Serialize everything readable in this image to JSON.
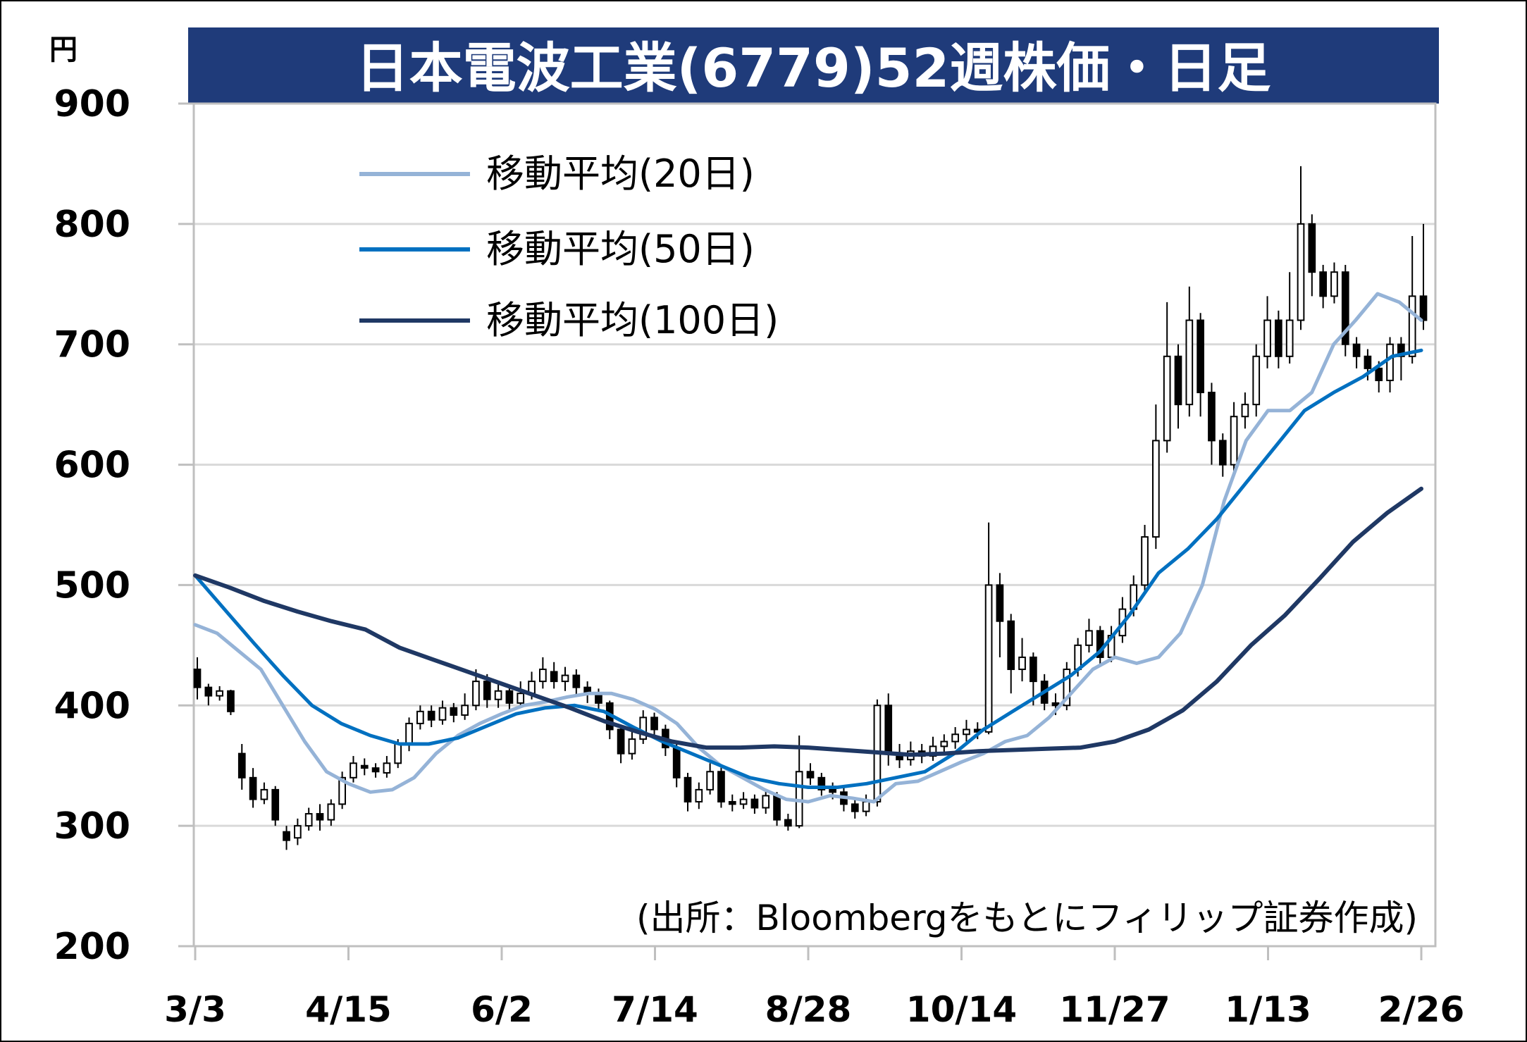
{
  "chart_data": {
    "type": "line",
    "subtype": "candlestick-with-moving-averages",
    "title": "日本電波工業(6779)52週株価・日足",
    "unit_label": "円",
    "yticks": [
      900,
      800,
      700,
      600,
      500,
      400,
      300,
      200
    ],
    "ylim": [
      200,
      900
    ],
    "xticks": [
      "3/3",
      "4/15",
      "6/2",
      "7/14",
      "8/28",
      "10/14",
      "11/27",
      "1/13",
      "2/26"
    ],
    "source": "(出所：Bloombergをもとにフィリップ証券作成)",
    "grid": "horizontal",
    "legend_position": "top-left",
    "series": [
      {
        "name": "移動平均(20日)",
        "color": "#95b3d7",
        "values": [
          467,
          460,
          445,
          430,
          400,
          370,
          345,
          335,
          328,
          330,
          340,
          360,
          375,
          385,
          393,
          400,
          403,
          407,
          410,
          410,
          405,
          397,
          385,
          365,
          350,
          340,
          330,
          322,
          320,
          325,
          323,
          320,
          335,
          337,
          345,
          353,
          360,
          370,
          375,
          390,
          410,
          430,
          440,
          435,
          440,
          460,
          500,
          570,
          620,
          645,
          645,
          660,
          700,
          720,
          742,
          735,
          720
        ]
      },
      {
        "name": "移動平均(50日)",
        "color": "#0070c0",
        "values": [
          508,
          480,
          452,
          425,
          400,
          385,
          375,
          368,
          368,
          373,
          383,
          393,
          398,
          400,
          395,
          382,
          370,
          360,
          350,
          340,
          335,
          332,
          332,
          335,
          340,
          345,
          360,
          380,
          395,
          410,
          425,
          445,
          475,
          510,
          530,
          555,
          585,
          615,
          645,
          660,
          673,
          690,
          695
        ]
      },
      {
        "name": "移動平均(100日)",
        "color": "#1f3864",
        "values": [
          508,
          498,
          487,
          478,
          470,
          463,
          448,
          438,
          428,
          418,
          408,
          398,
          387,
          378,
          370,
          365,
          365,
          366,
          365,
          363,
          361,
          359,
          360,
          362,
          363,
          364,
          365,
          370,
          380,
          396,
          420,
          450,
          475,
          505,
          536,
          560,
          580
        ]
      }
    ],
    "candles": [
      [
        1,
        430,
        415,
        440,
        405
      ],
      [
        2,
        415,
        408,
        418,
        400
      ],
      [
        3,
        408,
        412,
        416,
        404
      ],
      [
        4,
        412,
        395,
        413,
        392
      ],
      [
        5,
        360,
        340,
        368,
        330
      ],
      [
        6,
        340,
        322,
        348,
        315
      ],
      [
        7,
        322,
        330,
        336,
        318
      ],
      [
        8,
        330,
        305,
        333,
        300
      ],
      [
        9,
        295,
        288,
        300,
        280
      ],
      [
        10,
        290,
        300,
        306,
        284
      ],
      [
        11,
        300,
        310,
        315,
        296
      ],
      [
        12,
        310,
        305,
        318,
        296
      ],
      [
        13,
        305,
        318,
        322,
        300
      ],
      [
        14,
        318,
        340,
        345,
        314
      ],
      [
        15,
        340,
        352,
        358,
        336
      ],
      [
        16,
        350,
        348,
        356,
        342
      ],
      [
        17,
        348,
        345,
        352,
        340
      ],
      [
        18,
        344,
        352,
        358,
        340
      ],
      [
        19,
        352,
        368,
        372,
        348
      ],
      [
        20,
        368,
        385,
        390,
        362
      ],
      [
        21,
        385,
        395,
        400,
        380
      ],
      [
        22,
        395,
        388,
        400,
        382
      ],
      [
        23,
        388,
        398,
        404,
        384
      ],
      [
        24,
        398,
        392,
        402,
        386
      ],
      [
        25,
        392,
        400,
        410,
        388
      ],
      [
        26,
        400,
        420,
        430,
        396
      ],
      [
        27,
        420,
        405,
        426,
        398
      ],
      [
        28,
        405,
        412,
        418,
        398
      ],
      [
        29,
        412,
        402,
        416,
        396
      ],
      [
        30,
        402,
        410,
        420,
        398
      ],
      [
        31,
        410,
        420,
        428,
        405
      ],
      [
        32,
        420,
        430,
        440,
        414
      ],
      [
        33,
        428,
        420,
        436,
        414
      ],
      [
        34,
        420,
        425,
        432,
        412
      ],
      [
        35,
        425,
        415,
        430,
        408
      ],
      [
        36,
        415,
        410,
        420,
        402
      ],
      [
        37,
        410,
        402,
        414,
        396
      ],
      [
        38,
        402,
        380,
        404,
        372
      ],
      [
        39,
        380,
        360,
        384,
        352
      ],
      [
        40,
        360,
        372,
        380,
        355
      ],
      [
        41,
        372,
        390,
        396,
        368
      ],
      [
        42,
        390,
        380,
        394,
        372
      ],
      [
        43,
        380,
        365,
        384,
        358
      ],
      [
        44,
        365,
        340,
        368,
        332
      ],
      [
        45,
        340,
        320,
        344,
        312
      ],
      [
        46,
        320,
        330,
        336,
        314
      ],
      [
        47,
        330,
        345,
        352,
        326
      ],
      [
        48,
        345,
        320,
        350,
        315
      ],
      [
        49,
        320,
        318,
        326,
        312
      ],
      [
        50,
        318,
        322,
        328,
        314
      ],
      [
        51,
        322,
        315,
        326,
        310
      ],
      [
        52,
        315,
        325,
        330,
        310
      ],
      [
        53,
        325,
        305,
        328,
        300
      ],
      [
        54,
        305,
        300,
        310,
        296
      ],
      [
        55,
        300,
        345,
        375,
        298
      ],
      [
        56,
        345,
        340,
        352,
        334
      ],
      [
        57,
        340,
        330,
        344,
        325
      ],
      [
        58,
        330,
        328,
        336,
        322
      ],
      [
        59,
        328,
        318,
        332,
        312
      ],
      [
        60,
        318,
        312,
        322,
        306
      ],
      [
        61,
        312,
        320,
        326,
        308
      ],
      [
        62,
        320,
        400,
        405,
        316
      ],
      [
        63,
        400,
        360,
        410,
        350
      ],
      [
        64,
        360,
        355,
        368,
        348
      ],
      [
        65,
        355,
        362,
        370,
        350
      ],
      [
        66,
        362,
        358,
        368,
        352
      ],
      [
        67,
        358,
        366,
        374,
        354
      ],
      [
        68,
        366,
        370,
        376,
        360
      ],
      [
        69,
        370,
        376,
        382,
        364
      ],
      [
        70,
        376,
        380,
        388,
        370
      ],
      [
        71,
        380,
        378,
        386,
        372
      ],
      [
        72,
        378,
        500,
        552,
        376
      ],
      [
        73,
        500,
        470,
        510,
        440
      ],
      [
        74,
        470,
        430,
        476,
        410
      ],
      [
        75,
        430,
        440,
        456,
        420
      ],
      [
        76,
        440,
        420,
        444,
        400
      ],
      [
        77,
        420,
        402,
        426,
        396
      ],
      [
        78,
        402,
        400,
        410,
        392
      ],
      [
        79,
        400,
        430,
        436,
        396
      ],
      [
        80,
        430,
        450,
        456,
        424
      ],
      [
        81,
        450,
        462,
        472,
        444
      ],
      [
        82,
        462,
        440,
        466,
        432
      ],
      [
        83,
        440,
        458,
        466,
        436
      ],
      [
        84,
        458,
        480,
        490,
        452
      ],
      [
        85,
        480,
        500,
        508,
        474
      ],
      [
        86,
        500,
        540,
        550,
        494
      ],
      [
        87,
        540,
        620,
        650,
        530
      ],
      [
        88,
        620,
        690,
        735,
        610
      ],
      [
        89,
        690,
        650,
        700,
        630
      ],
      [
        90,
        650,
        720,
        748,
        640
      ],
      [
        91,
        720,
        660,
        726,
        640
      ],
      [
        92,
        660,
        620,
        668,
        600
      ],
      [
        93,
        620,
        600,
        626,
        590
      ],
      [
        94,
        600,
        640,
        652,
        594
      ],
      [
        95,
        640,
        650,
        660,
        630
      ],
      [
        96,
        650,
        690,
        700,
        640
      ],
      [
        97,
        690,
        720,
        740,
        680
      ],
      [
        98,
        720,
        690,
        728,
        680
      ],
      [
        99,
        690,
        720,
        760,
        684
      ],
      [
        100,
        720,
        800,
        848,
        712
      ],
      [
        101,
        800,
        760,
        808,
        740
      ],
      [
        102,
        760,
        740,
        766,
        730
      ],
      [
        103,
        740,
        760,
        768,
        734
      ],
      [
        104,
        760,
        700,
        766,
        690
      ],
      [
        105,
        700,
        690,
        706,
        680
      ],
      [
        106,
        690,
        680,
        696,
        670
      ],
      [
        107,
        680,
        670,
        686,
        660
      ],
      [
        108,
        670,
        700,
        706,
        660
      ],
      [
        109,
        700,
        690,
        706,
        670
      ],
      [
        110,
        690,
        740,
        790,
        684
      ],
      [
        111,
        740,
        720,
        800,
        712
      ]
    ]
  }
}
